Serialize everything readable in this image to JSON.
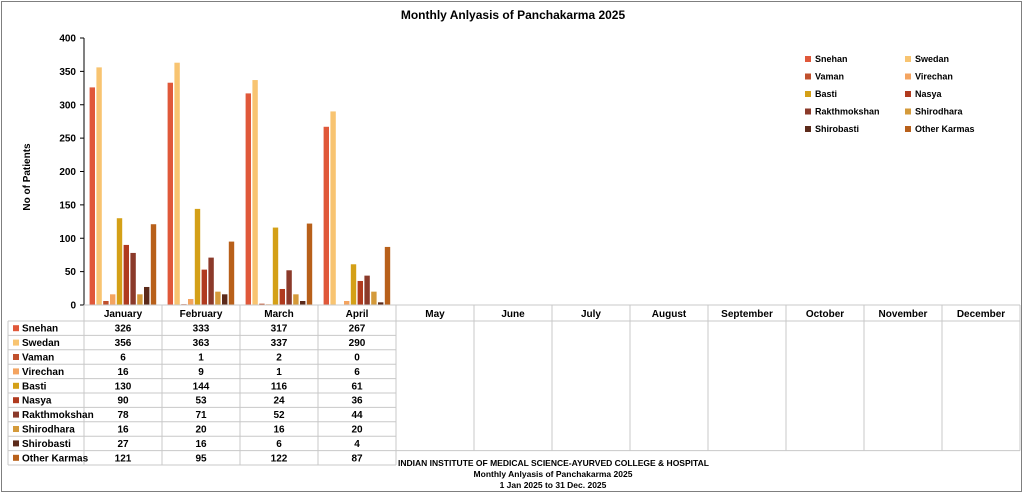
{
  "chart_data": {
    "type": "bar",
    "title": "Monthly Anlyasis of Panchakarma  2025",
    "ylabel": "No of Patients",
    "xlabel": "",
    "ylim": [
      0,
      400
    ],
    "yticks": [
      0,
      50,
      100,
      150,
      200,
      250,
      300,
      350,
      400
    ],
    "grid": false,
    "legend_position": "top-right",
    "categories": [
      "January",
      "February",
      "March",
      "April",
      "May",
      "June",
      "July",
      "August",
      "September",
      "October",
      "November",
      "December"
    ],
    "series": [
      {
        "name": "Snehan",
        "color": "#e0583a",
        "values": [
          326,
          333,
          317,
          267,
          null,
          null,
          null,
          null,
          null,
          null,
          null,
          null
        ]
      },
      {
        "name": "Swedan",
        "color": "#f8c471",
        "values": [
          356,
          363,
          337,
          290,
          null,
          null,
          null,
          null,
          null,
          null,
          null,
          null
        ]
      },
      {
        "name": "Vaman",
        "color": "#c0502d",
        "values": [
          6,
          1,
          2,
          0,
          null,
          null,
          null,
          null,
          null,
          null,
          null,
          null
        ]
      },
      {
        "name": "Virechan",
        "color": "#f4a460",
        "values": [
          16,
          9,
          1,
          6,
          null,
          null,
          null,
          null,
          null,
          null,
          null,
          null
        ]
      },
      {
        "name": "Basti",
        "color": "#d4a017",
        "values": [
          130,
          144,
          116,
          61,
          null,
          null,
          null,
          null,
          null,
          null,
          null,
          null
        ]
      },
      {
        "name": "Nasya",
        "color": "#b03a1e",
        "values": [
          90,
          53,
          24,
          36,
          null,
          null,
          null,
          null,
          null,
          null,
          null,
          null
        ]
      },
      {
        "name": "Rakthmokshan",
        "color": "#8b3a2a",
        "values": [
          78,
          71,
          52,
          44,
          null,
          null,
          null,
          null,
          null,
          null,
          null,
          null
        ]
      },
      {
        "name": "Shirodhara",
        "color": "#d49a3a",
        "values": [
          16,
          20,
          16,
          20,
          null,
          null,
          null,
          null,
          null,
          null,
          null,
          null
        ]
      },
      {
        "name": "Shirobasti",
        "color": "#5c2a1a",
        "values": [
          27,
          16,
          6,
          4,
          null,
          null,
          null,
          null,
          null,
          null,
          null,
          null
        ]
      },
      {
        "name": "Other Karmas",
        "color": "#b8601a",
        "values": [
          121,
          95,
          122,
          87,
          null,
          null,
          null,
          null,
          null,
          null,
          null,
          null
        ]
      }
    ]
  },
  "footer": {
    "line1": "INDIAN INSTITUTE OF MEDICAL SCIENCE-AYURVED  COLLEGE & HOSPITAL",
    "line2": "Monthly Anlyasis of Panchakarma   2025",
    "line3": "1 Jan 2025 to 31 Dec. 2025"
  }
}
